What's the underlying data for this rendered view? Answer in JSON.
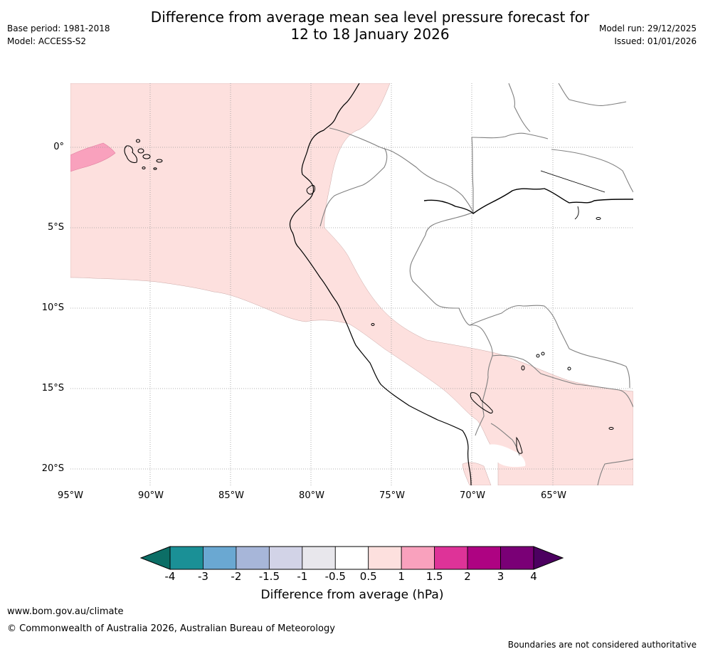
{
  "header": {
    "title_line1": "Difference from average mean sea level pressure forecast for",
    "title_line2": "12 to 18 January 2026",
    "base_period": "Base period: 1981-2018",
    "model": "Model: ACCESS-S2",
    "model_run": "Model run: 29/12/2025",
    "issued": "Issued: 01/01/2026"
  },
  "map": {
    "lat_labels": [
      "0°",
      "5°S",
      "10°S",
      "15°S",
      "20°S"
    ],
    "lon_labels": [
      "95°W",
      "90°W",
      "85°W",
      "80°W",
      "75°W",
      "70°W",
      "65°W"
    ],
    "colors": {
      "light_pink": "#fde0de",
      "pink": "#f9a1bd",
      "coast": "#000000",
      "border": "#808080",
      "grid": "#999999"
    }
  },
  "colorbar": {
    "label": "Difference from average (hPa)",
    "ticks": [
      "-4",
      "-3",
      "-2",
      "-1.5",
      "-1",
      "-0.5",
      "0.5",
      "1",
      "1.5",
      "2",
      "3",
      "4"
    ],
    "colors": [
      "#1a9096",
      "#6aa8d2",
      "#a7b6d9",
      "#d2d3e7",
      "#e8e7ec",
      "#ffffff",
      "#fde0de",
      "#f9a1bd",
      "#de3398",
      "#ae0382",
      "#7a0076"
    ],
    "low_extend_color": "#0c6e66",
    "high_extend_color": "#4c0060"
  },
  "footer": {
    "website": "www.bom.gov.au/climate",
    "copyright": "© Commonwealth of Australia 2026, Australian Bureau of Meteorology",
    "disclaimer": "Boundaries are not considered authoritative"
  }
}
